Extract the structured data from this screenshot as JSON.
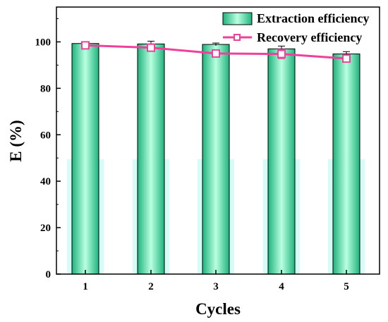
{
  "chart_data": {
    "type": "bar",
    "xlabel": "Cycles",
    "ylabel": "E (%)",
    "categories": [
      "1",
      "2",
      "3",
      "4",
      "5"
    ],
    "ylim": [
      0,
      115
    ],
    "yticks": [
      0,
      20,
      40,
      60,
      80,
      100
    ],
    "grid": false,
    "legend_position": "top-right",
    "series": [
      {
        "name": "Extraction efficiency",
        "kind": "bar",
        "values": [
          99.3,
          99.1,
          98.9,
          97.0,
          94.8
        ],
        "errors": [
          0.7,
          1.2,
          0.6,
          1.2,
          1.0
        ],
        "color": "#2ed69a"
      },
      {
        "name": "Recovery efficiency",
        "kind": "line",
        "marker": "square",
        "values": [
          98.5,
          97.5,
          95.0,
          94.8,
          92.8
        ],
        "errors": [
          1.0,
          1.5,
          1.2,
          2.0,
          1.5
        ],
        "color": "#f0409a"
      }
    ]
  }
}
